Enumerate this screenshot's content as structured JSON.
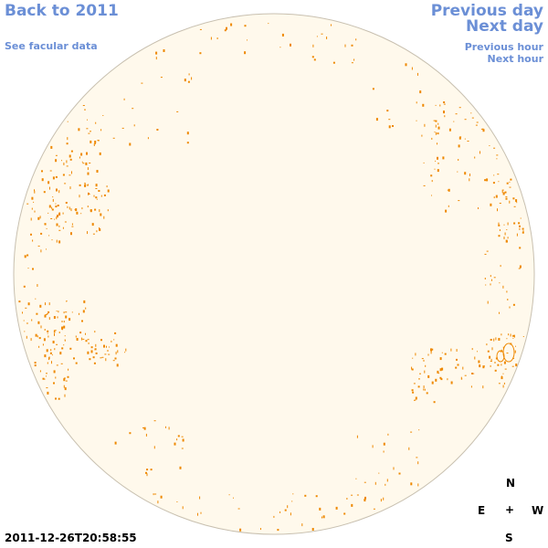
{
  "nav": {
    "back_label": "Back to 2011",
    "facular_label": "See facular data",
    "prev_day_label": "Previous day",
    "next_day_label": "Next day",
    "prev_hour_label": "Previous hour",
    "next_hour_label": "Next hour"
  },
  "compass": {
    "north": "N",
    "east": "E",
    "center": "+",
    "west": "W",
    "south": "S"
  },
  "timestamp": "2011-12-26T20:58:55",
  "colors": {
    "disk_fill": "#fff9ec",
    "disk_edge": "#c8c0b0",
    "facula": "#ee8800",
    "link": "#6b8fd6"
  }
}
